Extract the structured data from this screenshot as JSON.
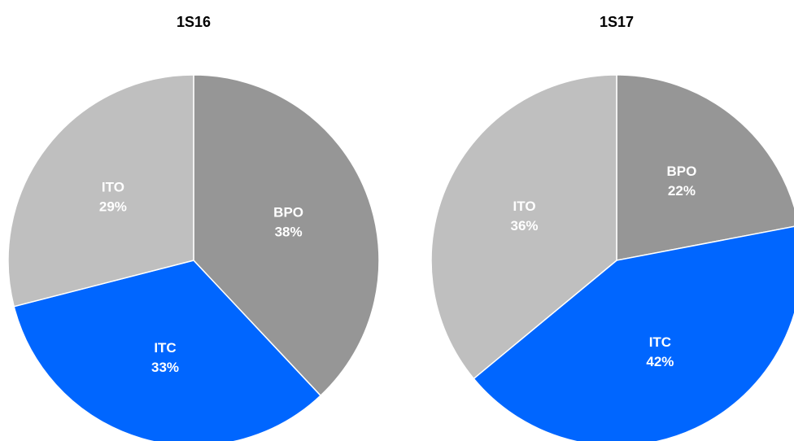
{
  "chart_data": [
    {
      "type": "pie",
      "title": "1S16",
      "categories": [
        "BPO",
        "ITC",
        "ITO"
      ],
      "values": [
        38,
        33,
        29
      ],
      "value_labels": [
        "38%",
        "33%",
        "29%"
      ],
      "colors": [
        "#969696",
        "#0066ff",
        "#bfbfbf"
      ]
    },
    {
      "type": "pie",
      "title": "1S17",
      "categories": [
        "BPO",
        "ITC",
        "ITO"
      ],
      "values": [
        22,
        42,
        36
      ],
      "value_labels": [
        "22%",
        "42%",
        "36%"
      ],
      "colors": [
        "#969696",
        "#0066ff",
        "#bfbfbf"
      ]
    }
  ]
}
